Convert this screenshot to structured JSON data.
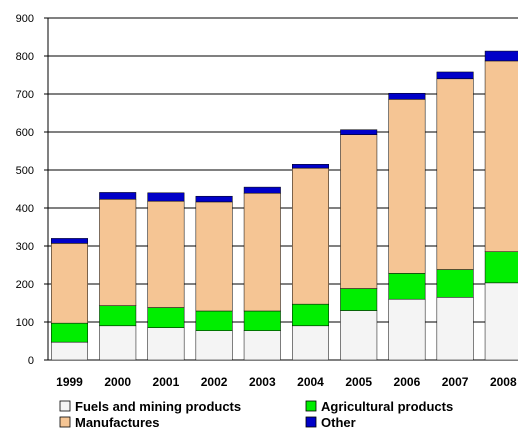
{
  "chart_data": {
    "type": "bar",
    "stacked": true,
    "title": "",
    "xlabel": "",
    "ylabel": "",
    "ylim": [
      0,
      900
    ],
    "yticks": [
      0,
      100,
      200,
      300,
      400,
      500,
      600,
      700,
      800,
      900
    ],
    "grid": "horizontal",
    "legend_position": "bottom",
    "categories": [
      "1999",
      "2000",
      "2001",
      "2002",
      "2003",
      "2004",
      "2005",
      "2006",
      "2007",
      "2008"
    ],
    "series": [
      {
        "name": "Fuels and mining products",
        "color": "#f4f4f4",
        "values": [
          47,
          90,
          85,
          77,
          77,
          90,
          130,
          160,
          165,
          203
        ]
      },
      {
        "name": "Agricultural products",
        "color": "#00ee00",
        "values": [
          50,
          53,
          53,
          52,
          52,
          57,
          58,
          68,
          73,
          82
        ]
      },
      {
        "name": "Manufactures",
        "color": "#f5c594",
        "values": [
          210,
          280,
          280,
          287,
          310,
          358,
          405,
          458,
          502,
          502
        ]
      },
      {
        "name": "Other",
        "color": "#0000c8",
        "values": [
          13,
          18,
          22,
          15,
          16,
          10,
          13,
          16,
          18,
          26
        ]
      }
    ]
  }
}
